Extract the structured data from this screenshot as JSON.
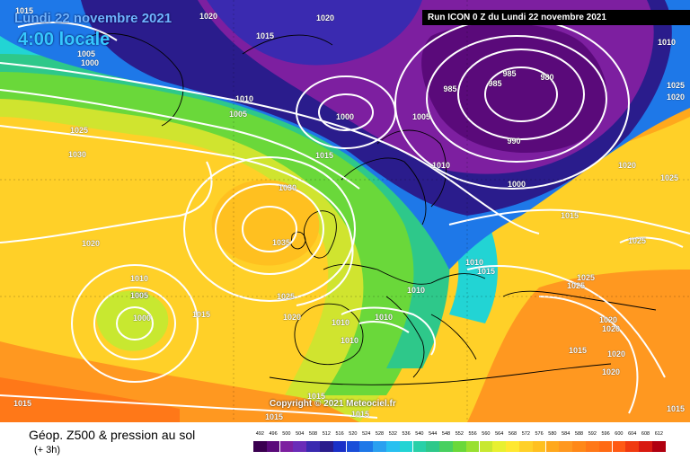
{
  "header": {
    "date_title": "Lundi 22 novembre 2021",
    "time_title": "4:00 locale",
    "run_label": "Run ICON 0 Z du Lundi 22 novembre 2021"
  },
  "map": {
    "copyright": "Copyright © 2021 Meteociel.fr",
    "isobars": [
      {
        "text": "1020"
      },
      {
        "text": "1015"
      },
      {
        "text": "1020"
      },
      {
        "text": "1010"
      },
      {
        "text": "1005"
      },
      {
        "text": "1000"
      },
      {
        "text": "1005"
      },
      {
        "text": "1015"
      },
      {
        "text": "1005"
      },
      {
        "text": "1000"
      },
      {
        "text": "1025"
      },
      {
        "text": "1030"
      },
      {
        "text": "1020"
      },
      {
        "text": "1030"
      },
      {
        "text": "1035"
      },
      {
        "text": "985"
      },
      {
        "text": "985"
      },
      {
        "text": "985"
      },
      {
        "text": "980"
      },
      {
        "text": "990"
      },
      {
        "text": "1000"
      },
      {
        "text": "1010"
      },
      {
        "text": "1015"
      },
      {
        "text": "1010"
      },
      {
        "text": "1005"
      },
      {
        "text": "1015"
      },
      {
        "text": "1015"
      },
      {
        "text": "1010"
      },
      {
        "text": "1005"
      },
      {
        "text": "1000"
      },
      {
        "text": "1015"
      },
      {
        "text": "1025"
      },
      {
        "text": "1020"
      },
      {
        "text": "1010"
      },
      {
        "text": "1010"
      },
      {
        "text": "1010"
      },
      {
        "text": "1010"
      },
      {
        "text": "1025"
      },
      {
        "text": "1025"
      },
      {
        "text": "1020"
      },
      {
        "text": "1020"
      },
      {
        "text": "1015"
      },
      {
        "text": "1020"
      },
      {
        "text": "1020"
      },
      {
        "text": "1015"
      },
      {
        "text": "1015"
      },
      {
        "text": "1015"
      },
      {
        "text": "1020"
      },
      {
        "text": "1025"
      },
      {
        "text": "1025"
      },
      {
        "text": "1025"
      },
      {
        "text": "1020"
      },
      {
        "text": "1010"
      },
      {
        "text": "1015"
      },
      {
        "text": "1015"
      }
    ],
    "colors": {
      "deep_purple": "#5a0a7a",
      "purple": "#7d1fa0",
      "indigo": "#2a1c8c",
      "blue": "#1a4ed8",
      "light_blue": "#2aa0f0",
      "cyan": "#22d4d4",
      "teal": "#2ec88a",
      "green": "#6ad83a",
      "yellow_green": "#c8e830",
      "yellow": "#ffe830",
      "light_orange": "#ffc020",
      "orange": "#ff9820",
      "dark_orange": "#ff7818",
      "red_orange": "#ff5a14"
    }
  },
  "legend": {
    "parameter": "Géop. Z500 & pression au sol",
    "step": "(+ 3h)",
    "ticks": [
      "492",
      "496",
      "500",
      "504",
      "508",
      "512",
      "516",
      "520",
      "524",
      "528",
      "532",
      "536",
      "540",
      "544",
      "548",
      "552",
      "556",
      "560",
      "564",
      "568",
      "572",
      "576",
      "580",
      "584",
      "588",
      "592",
      "596",
      "600",
      "604",
      "608",
      "612"
    ],
    "colors": [
      "#3a0050",
      "#5a0a7a",
      "#7d1fa0",
      "#6a2cb8",
      "#3a2ab0",
      "#2a1c8c",
      "#1a30c8",
      "#1a4ed8",
      "#1e78e8",
      "#2aa0f0",
      "#28c0f0",
      "#22d4d4",
      "#28d0a8",
      "#2ec88a",
      "#48d060",
      "#6ad83a",
      "#98e030",
      "#c8e830",
      "#e8f030",
      "#ffe830",
      "#ffd028",
      "#ffc020",
      "#ffa81c",
      "#ff9820",
      "#ff8818",
      "#ff7818",
      "#ff6a14",
      "#ff5a14",
      "#f03a10",
      "#d81a10",
      "#b00010"
    ]
  }
}
